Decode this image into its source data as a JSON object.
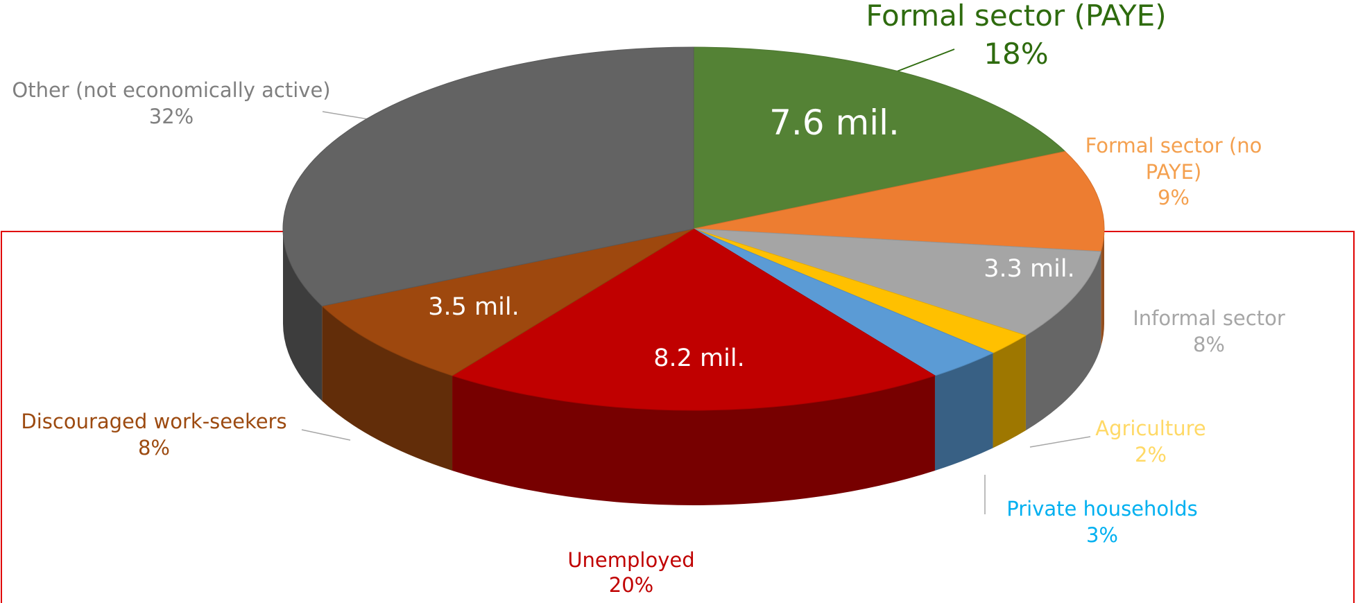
{
  "chart_data": {
    "type": "pie3d",
    "categories": [
      "Formal sector (PAYE)",
      "Formal sector (no PAYE)",
      "Informal sector",
      "Agriculture",
      "Private households",
      "Unemployed",
      "Discouraged work-seekers",
      "Other (not economically active)"
    ],
    "values": [
      18,
      9,
      8,
      2,
      3,
      20,
      8,
      32
    ],
    "value_labels": [
      "18%",
      "9%",
      "8%",
      "2%",
      "3%",
      "20%",
      "8%",
      "32%"
    ],
    "inner_labels": [
      "7.6 mil.",
      null,
      "3.3 mil.",
      null,
      null,
      "8.2 mil.",
      "3.5 mil.",
      null
    ],
    "colors": [
      "#548235",
      "#ed7d31",
      "#a5a5a5",
      "#ffc000",
      "#5b9bd5",
      "#c00000",
      "#9e480e",
      "#636363"
    ],
    "label_colors": [
      "#2e6b0e",
      "#f4a04f",
      "#a6a6a6",
      "#ffd966",
      "#00b0f0",
      "#c00000",
      "#9c4a10",
      "#7f7f7f"
    ]
  }
}
